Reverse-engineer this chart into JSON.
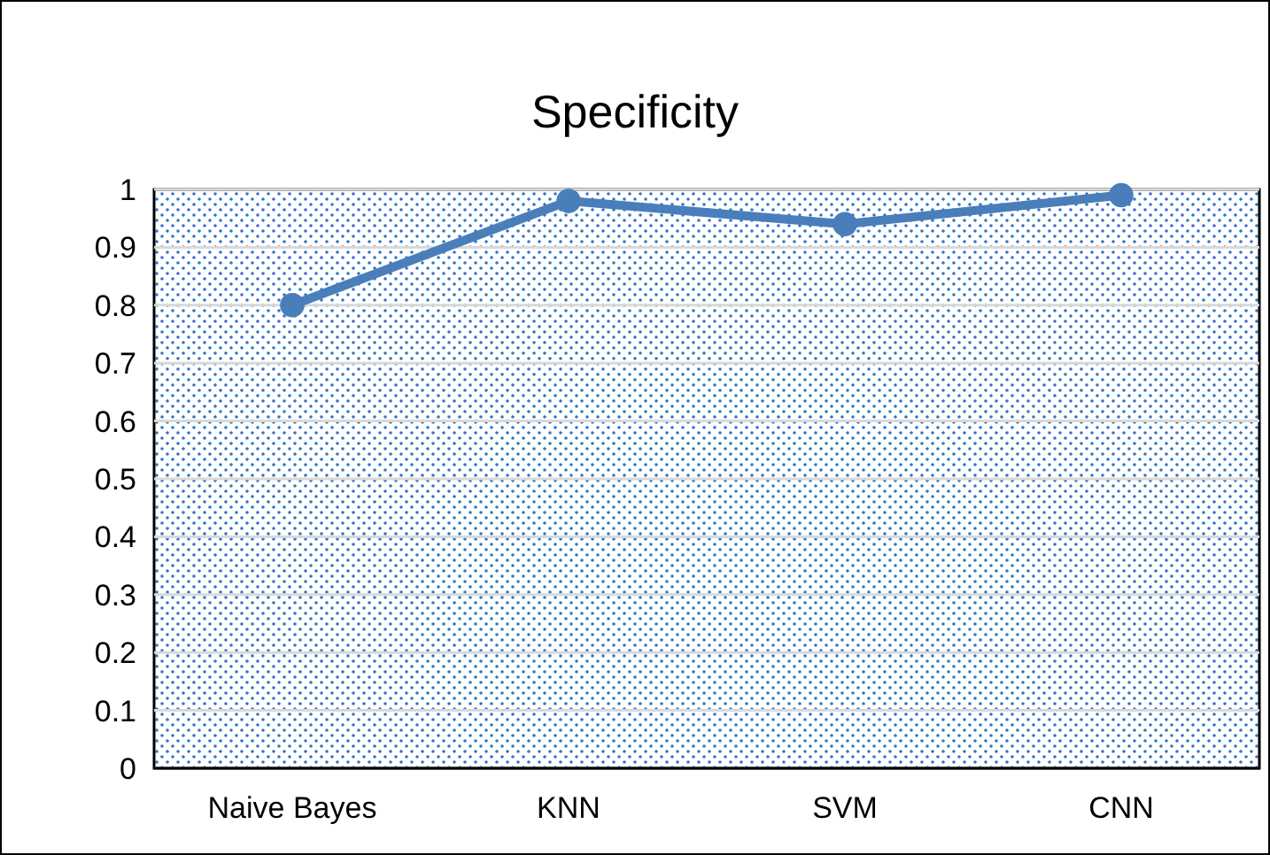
{
  "chart_data": {
    "type": "line",
    "title": "Specificity",
    "categories": [
      "Naive Bayes",
      "KNN",
      "SVM",
      "CNN"
    ],
    "series": [
      {
        "color": "#4a7ebb",
        "values": [
          0.8,
          0.98,
          0.94,
          0.99
        ]
      }
    ],
    "ylim": [
      0,
      1
    ],
    "yticks": [
      0,
      0.1,
      0.2,
      0.3,
      0.4,
      0.5,
      0.6,
      0.7,
      0.8,
      0.9,
      1
    ],
    "grid": "y",
    "marker": "circle",
    "line_style": "solid"
  }
}
